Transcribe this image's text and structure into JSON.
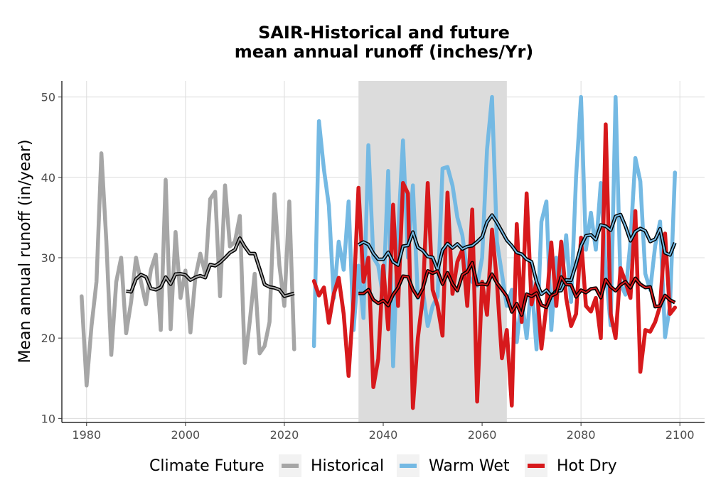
{
  "chart_data": {
    "type": "line",
    "title": [
      "SAIR-Historical and future",
      "mean annual runoff (inches/Yr)"
    ],
    "xlabel": "",
    "ylabel": "Mean annual runoff (in/year)",
    "xlim": [
      1975,
      2105
    ],
    "ylim": [
      9.5,
      52
    ],
    "x_ticks": [
      1980,
      2000,
      2020,
      2040,
      2060,
      2080,
      2100
    ],
    "y_ticks": [
      10,
      20,
      30,
      40,
      50
    ],
    "grid": true,
    "legend": {
      "title": "Climate Future",
      "position": "bottom"
    },
    "shaded_region": {
      "x": [
        2035,
        2065
      ],
      "color": "#dcdcdc"
    },
    "series": [
      {
        "name": "Historical",
        "color": "#a6a6a6",
        "x": [
          1979,
          1980,
          1981,
          1982,
          1983,
          1984,
          1985,
          1986,
          1987,
          1988,
          1989,
          1990,
          1991,
          1992,
          1993,
          1994,
          1995,
          1996,
          1997,
          1998,
          1999,
          2000,
          2001,
          2002,
          2003,
          2004,
          2005,
          2006,
          2007,
          2008,
          2009,
          2010,
          2011,
          2012,
          2013,
          2014,
          2015,
          2016,
          2017,
          2018,
          2019,
          2020,
          2021,
          2022
        ],
        "values": [
          25.2,
          14.1,
          21.5,
          27,
          43,
          32,
          17.9,
          27,
          30,
          20.6,
          24.5,
          30,
          27,
          24.2,
          28.5,
          30.4,
          21,
          39.7,
          21.1,
          33.2,
          25,
          28.4,
          20.7,
          27.6,
          30.5,
          28,
          37.3,
          38.2,
          25.2,
          39,
          31.4,
          32,
          35.2,
          16.9,
          22,
          28,
          18.1,
          19,
          22,
          37.9,
          29,
          24,
          37,
          18.6
        ]
      },
      {
        "name": "Warm Wet",
        "color": "#74b9e3",
        "x": [
          2026,
          2027,
          2028,
          2029,
          2030,
          2031,
          2032,
          2033,
          2034,
          2035,
          2036,
          2037,
          2038,
          2039,
          2040,
          2041,
          2042,
          2043,
          2044,
          2045,
          2046,
          2047,
          2048,
          2049,
          2050,
          2051,
          2052,
          2053,
          2054,
          2055,
          2056,
          2057,
          2058,
          2059,
          2060,
          2061,
          2062,
          2063,
          2064,
          2065,
          2066,
          2067,
          2068,
          2069,
          2070,
          2071,
          2072,
          2073,
          2074,
          2075,
          2076,
          2077,
          2078,
          2079,
          2080,
          2081,
          2082,
          2083,
          2084,
          2085,
          2086,
          2087,
          2088,
          2089,
          2090,
          2091,
          2092,
          2093,
          2094,
          2095,
          2096,
          2097,
          2098,
          2099
        ],
        "values": [
          19,
          47,
          41,
          36.5,
          25,
          32,
          28.5,
          37,
          21,
          29,
          22.5,
          44,
          30,
          29,
          25,
          40.8,
          16.5,
          33,
          44.6,
          30,
          39,
          25,
          26,
          21.5,
          24,
          25.2,
          41.1,
          41.3,
          39,
          35,
          32.8,
          28,
          27,
          26.5,
          30,
          43.5,
          50,
          32,
          28,
          24,
          26,
          19.5,
          25,
          20,
          27,
          18.6,
          34.5,
          37,
          21,
          30,
          26.5,
          32.8,
          24.5,
          40,
          50,
          31,
          35.6,
          31,
          39.3,
          28.5,
          21.6,
          50,
          26.7,
          25.4,
          32,
          42.4,
          39.5,
          28,
          26,
          31.5,
          34.5,
          20.1,
          24,
          40.6
        ]
      },
      {
        "name": "Hot Dry",
        "color": "#d7191c",
        "x": [
          2026,
          2027,
          2028,
          2029,
          2030,
          2031,
          2032,
          2033,
          2034,
          2035,
          2036,
          2037,
          2038,
          2039,
          2040,
          2041,
          2042,
          2043,
          2044,
          2045,
          2046,
          2047,
          2048,
          2049,
          2050,
          2051,
          2052,
          2053,
          2054,
          2055,
          2056,
          2057,
          2058,
          2059,
          2060,
          2061,
          2062,
          2063,
          2064,
          2065,
          2066,
          2067,
          2068,
          2069,
          2070,
          2071,
          2072,
          2073,
          2074,
          2075,
          2076,
          2077,
          2078,
          2079,
          2080,
          2081,
          2082,
          2083,
          2084,
          2085,
          2086,
          2087,
          2088,
          2089,
          2090,
          2091,
          2092,
          2093,
          2094,
          2095,
          2096,
          2097,
          2098,
          2099
        ],
        "values": [
          27.1,
          25.3,
          26.3,
          21.9,
          25.5,
          27.5,
          23,
          15.3,
          25,
          38.7,
          27,
          30,
          13.9,
          17.4,
          29,
          21.1,
          36.6,
          24,
          39.3,
          38,
          11.3,
          20,
          25,
          39.3,
          26,
          24,
          20.3,
          38.1,
          25.5,
          29.5,
          31,
          24,
          36,
          12.1,
          27,
          22.9,
          33.5,
          27,
          17.5,
          21,
          11.6,
          34.2,
          22,
          38,
          24.2,
          27,
          18.7,
          24,
          31.9,
          24,
          32,
          25,
          21.5,
          23,
          32.5,
          24,
          23.3,
          25,
          20,
          46.6,
          23,
          20,
          28.7,
          27,
          25,
          35.8,
          15.8,
          21,
          20.8,
          22,
          24,
          33,
          23,
          23.8
        ]
      }
    ],
    "moving_average_color": "#000000"
  }
}
